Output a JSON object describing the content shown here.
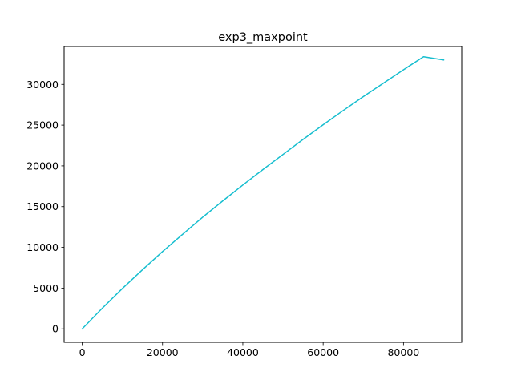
{
  "chart_data": {
    "type": "line",
    "title": "exp3_maxpoint",
    "xlabel": "",
    "ylabel": "",
    "xlim": [
      -4500,
      94500
    ],
    "ylim": [
      -1650,
      34650
    ],
    "x_ticks": [
      0,
      20000,
      40000,
      60000,
      80000
    ],
    "y_ticks": [
      0,
      5000,
      10000,
      15000,
      20000,
      25000,
      30000
    ],
    "grid": false,
    "legend": "none",
    "series": [
      {
        "color": "#17becf",
        "x": [
          0,
          5000,
          10000,
          15000,
          20000,
          25000,
          30000,
          35000,
          40000,
          45000,
          50000,
          55000,
          60000,
          65000,
          70000,
          75000,
          80000,
          85000,
          90000
        ],
        "y": [
          0,
          2530,
          4950,
          7250,
          9480,
          11600,
          13700,
          15700,
          17650,
          19550,
          21400,
          23250,
          25050,
          26800,
          28500,
          30150,
          31800,
          33400,
          33000
        ]
      }
    ]
  }
}
